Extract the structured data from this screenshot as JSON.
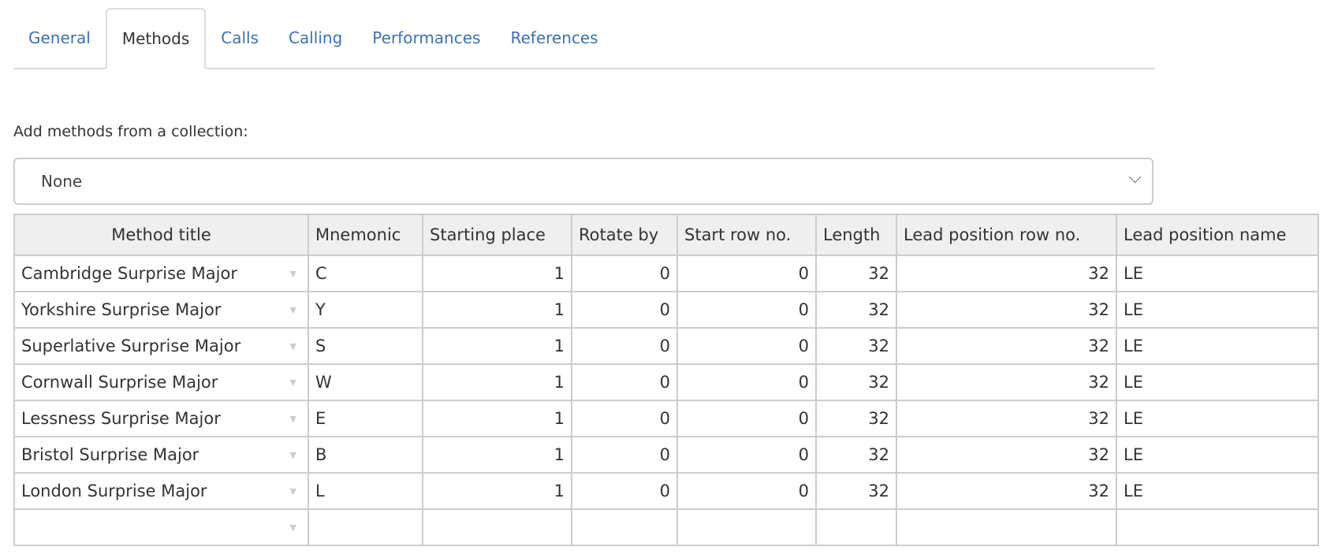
{
  "tabs": [
    {
      "label": "General",
      "active": false
    },
    {
      "label": "Methods",
      "active": true
    },
    {
      "label": "Calls",
      "active": false
    },
    {
      "label": "Calling",
      "active": false
    },
    {
      "label": "Performances",
      "active": false
    },
    {
      "label": "References",
      "active": false
    }
  ],
  "collection": {
    "label": "Add methods from a collection:",
    "selected": "None"
  },
  "table": {
    "columns": [
      "Method title",
      "Mnemonic",
      "Starting place",
      "Rotate by",
      "Start row no.",
      "Length",
      "Lead position row no.",
      "Lead position name"
    ],
    "rows": [
      [
        "Cambridge Surprise Major",
        "C",
        "1",
        "0",
        "0",
        "32",
        "32",
        "LE"
      ],
      [
        "Yorkshire Surprise Major",
        "Y",
        "1",
        "0",
        "0",
        "32",
        "32",
        "LE"
      ],
      [
        "Superlative Surprise Major",
        "S",
        "1",
        "0",
        "0",
        "32",
        "32",
        "LE"
      ],
      [
        "Cornwall Surprise Major",
        "W",
        "1",
        "0",
        "0",
        "32",
        "32",
        "LE"
      ],
      [
        "Lessness Surprise Major",
        "E",
        "1",
        "0",
        "0",
        "32",
        "32",
        "LE"
      ],
      [
        "Bristol Surprise Major",
        "B",
        "1",
        "0",
        "0",
        "32",
        "32",
        "LE"
      ],
      [
        "London Surprise Major",
        "L",
        "1",
        "0",
        "0",
        "32",
        "32",
        "LE"
      ],
      [
        "",
        "",
        "",
        "",
        "",
        "",
        "",
        ""
      ]
    ]
  },
  "colors": {
    "link": "#3a72b0",
    "header_bg": "#efefef",
    "border": "#cccccc"
  }
}
